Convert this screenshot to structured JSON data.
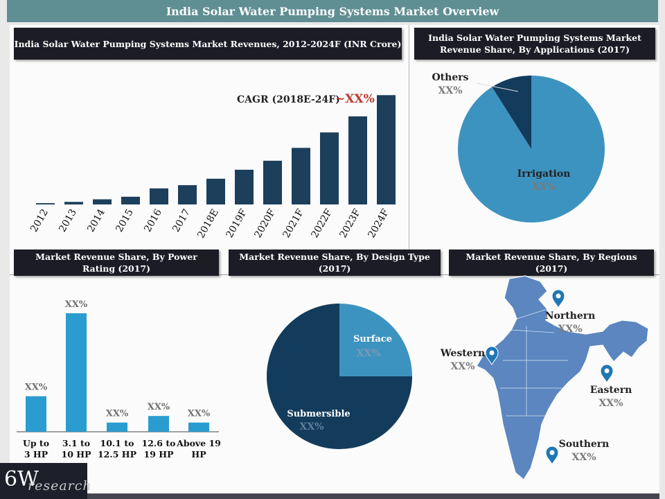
{
  "header": {
    "title": "India Solar Water Pumping Systems Market Overview"
  },
  "logo": {
    "main": "6W",
    "sub": "research"
  },
  "colors": {
    "bar_dark": "#1c3f5c",
    "bar_light": "#2a9ccf",
    "pie_light": "#3d93c0",
    "pie_dark": "#133c5c",
    "accent_red": "#c0392b",
    "map_fill": "#5b86c0"
  },
  "chart_data": [
    {
      "type": "bar",
      "title": "India Solar Water Pumping Systems Market Revenues, 2012-2024F (INR Crore)",
      "categories": [
        "2012",
        "2013",
        "2014",
        "2015",
        "2016",
        "2017",
        "2018E",
        "2019F",
        "2020F",
        "2021F",
        "2022F",
        "2023F",
        "2024F"
      ],
      "values": [
        2,
        4,
        8,
        12,
        25,
        30,
        40,
        54,
        68,
        88,
        112,
        137,
        170
      ],
      "ylim": [
        0,
        180
      ],
      "annotation": {
        "label": "CAGR (2018E-24F)",
        "value": "~XX%"
      }
    },
    {
      "type": "pie",
      "title": "India Solar Water Pumping Systems Market Revenue Share, By Applications (2017)",
      "slices": [
        {
          "label": "Irrigation",
          "value": 91,
          "value_label": "XX%"
        },
        {
          "label": "Others",
          "value": 9,
          "value_label": "XX%"
        }
      ]
    },
    {
      "type": "bar",
      "title": "Market Revenue Share, By Power Rating (2017)",
      "categories": [
        "Up to 3 HP",
        "3.1 to 10 HP",
        "10.1 to 12.5 HP",
        "12.6 to 19 HP",
        "Above 19 HP"
      ],
      "values": [
        27,
        90,
        7,
        12,
        7
      ],
      "value_labels": [
        "XX%",
        "XX%",
        "XX%",
        "XX%",
        "XX%"
      ],
      "ylim": [
        0,
        100
      ]
    },
    {
      "type": "pie",
      "title": "Market Revenue Share, By Design Type (2017)",
      "slices": [
        {
          "label": "Surface",
          "value": 25,
          "value_label": "XX%"
        },
        {
          "label": "Submersible",
          "value": 75,
          "value_label": "XX%"
        }
      ]
    }
  ],
  "regions": {
    "title": "Market Revenue Share, By Regions (2017)",
    "items": [
      {
        "name": "Northern",
        "value": "XX%"
      },
      {
        "name": "Western",
        "value": "XX%"
      },
      {
        "name": "Eastern",
        "value": "XX%"
      },
      {
        "name": "Southern",
        "value": "XX%"
      }
    ]
  }
}
